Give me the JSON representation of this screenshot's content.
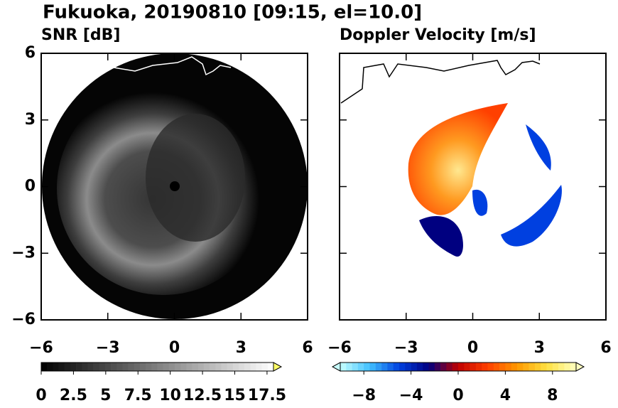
{
  "title": "Fukuoka, 20190810 [09:15, el=10.0]",
  "chart_data": [
    {
      "type": "radar",
      "title": "SNR [dB]",
      "xlim": [
        -6,
        6
      ],
      "ylim": [
        -6,
        6
      ],
      "xticks": [
        {
          "value": -6,
          "label": "−6"
        },
        {
          "value": -3,
          "label": "−3"
        },
        0,
        3,
        6
      ],
      "yticks": [
        {
          "value": -6,
          "label": "−6"
        },
        {
          "value": -3,
          "label": "−3"
        },
        0,
        3,
        6
      ],
      "ytick_labels": true,
      "colorbar": {
        "clim": [
          0,
          18
        ],
        "ticks": [
          0,
          2.5,
          5,
          7.5,
          10,
          12.5,
          15,
          17.5
        ],
        "colormap": [
          "#000000",
          "#ffffff"
        ],
        "extend": "max",
        "extend_color": "#ffff66"
      }
    },
    {
      "type": "radar",
      "title": "Doppler Velocity [m/s]",
      "xlim": [
        -6,
        6
      ],
      "ylim": [
        -6,
        6
      ],
      "xticks": [
        {
          "value": -6,
          "label": "−6"
        },
        {
          "value": -3,
          "label": "−3"
        },
        0,
        3,
        6
      ],
      "yticks": [
        {
          "value": -6,
          "label": "−6"
        },
        {
          "value": -3,
          "label": "−3"
        },
        0,
        3,
        6
      ],
      "ytick_labels": false,
      "colorbar": {
        "clim": [
          -10,
          10
        ],
        "ticks": [
          {
            "value": -8,
            "label": "−8"
          },
          {
            "value": -4,
            "label": "−4"
          },
          0,
          4,
          8
        ],
        "colormap": [
          "#c8ffff",
          "#40c0ff",
          "#0040e0",
          "#000080",
          "#c00000",
          "#ff4000",
          "#ff9900",
          "#ffe040",
          "#ffffc0"
        ],
        "extend": "both",
        "extend_color": null
      }
    }
  ]
}
